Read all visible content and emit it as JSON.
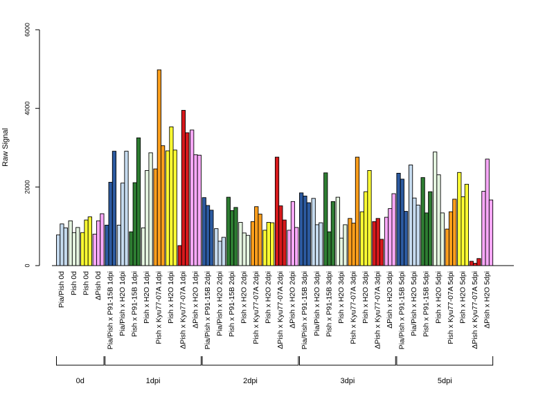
{
  "chart_data": {
    "type": "bar",
    "xlabel": "",
    "ylabel": "Raw Signal",
    "ylim": [
      0,
      6000
    ],
    "y_ticks": [
      0,
      2000,
      4000,
      6000
    ],
    "grid": false,
    "legend": "none",
    "categories": [
      {
        "label": "Pia/Pish 0d",
        "group": "0d",
        "color": "#c6dbef",
        "values": [
          780,
          1060,
          960
        ]
      },
      {
        "label": "Pish 0d",
        "group": "0d",
        "color": "#e5f5e0",
        "values": [
          1140,
          840,
          970
        ]
      },
      {
        "label": "Pish 0d",
        "group": "0d",
        "color": "#ffff33",
        "values": [
          840,
          1160,
          1240
        ]
      },
      {
        "label": "ΔPish 0d",
        "group": "0d",
        "color": "#f8a8f8",
        "values": [
          800,
          1140,
          1320
        ]
      },
      {
        "label": "Pia/Pish x P91-15B 1dpi",
        "group": "1dpi",
        "color": "#2c5aa0",
        "values": [
          1030,
          2120,
          2910
        ]
      },
      {
        "label": "Pia/Pish x H2O 1dpi",
        "group": "1dpi",
        "color": "#c6dbef",
        "values": [
          1030,
          2100,
          2910
        ]
      },
      {
        "label": "Pish x P91-15B 1dpi",
        "group": "1dpi",
        "color": "#2e7d32",
        "values": [
          860,
          2110,
          3250
        ]
      },
      {
        "label": "Pish x H2O 1dpi",
        "group": "1dpi",
        "color": "#e5f5e0",
        "values": [
          960,
          2420,
          2870
        ]
      },
      {
        "label": "Pish x Kyu77-07A 1dpi",
        "group": "1dpi",
        "color": "#ff9f1c",
        "values": [
          2460,
          4980,
          3050
        ]
      },
      {
        "label": "Pish x H2O 1dpi",
        "group": "1dpi",
        "color": "#ffff33",
        "values": [
          2920,
          3530,
          2940
        ]
      },
      {
        "label": "ΔPish x Kyu77-07A 1dpi",
        "group": "1dpi",
        "color": "#d7191c",
        "values": [
          510,
          3950,
          3380
        ]
      },
      {
        "label": "ΔPish x H2O 1dpi",
        "group": "1dpi",
        "color": "#f8a8f8",
        "values": [
          3450,
          2820,
          2810
        ]
      },
      {
        "label": "Pia/Pish x P91-15B 2dpi",
        "group": "2dpi",
        "color": "#2c5aa0",
        "values": [
          1730,
          1530,
          1410
        ]
      },
      {
        "label": "Pia/Pish x H2O 2dpi",
        "group": "2dpi",
        "color": "#c6dbef",
        "values": [
          940,
          620,
          720
        ]
      },
      {
        "label": "Pish x P91-15B 2dpi",
        "group": "2dpi",
        "color": "#2e7d32",
        "values": [
          1740,
          1400,
          1480
        ]
      },
      {
        "label": "Pish x H2O 2dpi",
        "group": "2dpi",
        "color": "#e5f5e0",
        "values": [
          1100,
          830,
          770
        ]
      },
      {
        "label": "Pish x Kyu77-07A 2dpi",
        "group": "2dpi",
        "color": "#ff9f1c",
        "values": [
          1120,
          1500,
          1310
        ]
      },
      {
        "label": "Pish x H2O 2dpi",
        "group": "2dpi",
        "color": "#ffff33",
        "values": [
          900,
          1100,
          1090
        ]
      },
      {
        "label": "ΔPish x Kyu77-07A 2dpi",
        "group": "2dpi",
        "color": "#d7191c",
        "values": [
          2760,
          1520,
          1160
        ]
      },
      {
        "label": "ΔPish x H2O 2dpi",
        "group": "2dpi",
        "color": "#f8a8f8",
        "values": [
          900,
          1630,
          970
        ]
      },
      {
        "label": "Pia/Pish x P91-15B 3dpi",
        "group": "3dpi",
        "color": "#2c5aa0",
        "values": [
          1850,
          1770,
          1600
        ]
      },
      {
        "label": "Pia/Pish x H2O 3dpi",
        "group": "3dpi",
        "color": "#c6dbef",
        "values": [
          1710,
          1040,
          1090
        ]
      },
      {
        "label": "Pish x P91-15B 3dpi",
        "group": "3dpi",
        "color": "#2e7d32",
        "values": [
          2360,
          860,
          1630
        ]
      },
      {
        "label": "Pish x H2O 3dpi",
        "group": "3dpi",
        "color": "#e5f5e0",
        "values": [
          1740,
          700,
          1040
        ]
      },
      {
        "label": "Pish x Kyu77-07A 3dpi",
        "group": "3dpi",
        "color": "#ff9f1c",
        "values": [
          1200,
          1080,
          2760
        ]
      },
      {
        "label": "Pish x H2O 3dpi",
        "group": "3dpi",
        "color": "#ffff33",
        "values": [
          1370,
          1880,
          2420
        ]
      },
      {
        "label": "ΔPish x Kyu77-07A 3dpi",
        "group": "3dpi",
        "color": "#d7191c",
        "values": [
          1120,
          1200,
          670
        ]
      },
      {
        "label": "ΔPish x H2O 3dpi",
        "group": "3dpi",
        "color": "#f8a8f8",
        "values": [
          1230,
          1450,
          1830
        ]
      },
      {
        "label": "Pia/Pish x P91-15B 5dpi",
        "group": "5dpi",
        "color": "#2c5aa0",
        "values": [
          2350,
          2200,
          1380
        ]
      },
      {
        "label": "Pia/Pish x H2O 5dpi",
        "group": "5dpi",
        "color": "#c6dbef",
        "values": [
          2560,
          1720,
          1540
        ]
      },
      {
        "label": "Pish x P91-15B 5dpi",
        "group": "5dpi",
        "color": "#2e7d32",
        "values": [
          2240,
          1340,
          1880
        ]
      },
      {
        "label": "Pish x H2O 5dpi",
        "group": "5dpi",
        "color": "#e5f5e0",
        "values": [
          2890,
          2310,
          1340
        ]
      },
      {
        "label": "Pish x Kyu77-07A 5dpi",
        "group": "5dpi",
        "color": "#ff9f1c",
        "values": [
          930,
          1370,
          1690
        ]
      },
      {
        "label": "Pish x H2O 5dpi",
        "group": "5dpi",
        "color": "#ffff33",
        "values": [
          2370,
          1750,
          2070
        ]
      },
      {
        "label": "ΔPish x Kyu77-07A 5dpi",
        "group": "5dpi",
        "color": "#d7191c",
        "values": [
          110,
          60,
          180
        ]
      },
      {
        "label": "ΔPish x H2O 5dpi",
        "group": "5dpi",
        "color": "#f8a8f8",
        "values": [
          1890,
          2710,
          1670
        ]
      }
    ],
    "groups": [
      "0d",
      "1dpi",
      "2dpi",
      "3dpi",
      "5dpi"
    ]
  }
}
